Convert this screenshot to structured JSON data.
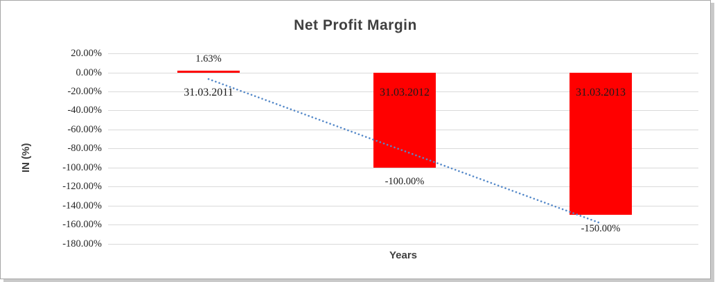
{
  "frame": {
    "background": "#ffffff",
    "border_color": "#a6a6a6",
    "shadow_color": "#c9c9c9"
  },
  "chart_data": {
    "type": "bar",
    "title": "Net Profit Margin",
    "xlabel": "Years",
    "ylabel": "IN (%)",
    "categories": [
      "31.03.2011",
      "31.03.2012",
      "31.03.2013"
    ],
    "series": [
      {
        "name": "Net Profit Margin",
        "values": [
          1.63,
          -100.0,
          -150.0
        ]
      }
    ],
    "data_labels": [
      "1.63%",
      "-100.00%",
      "-150.00%"
    ],
    "y_ticks": [
      {
        "label": "20.00%",
        "value": 20
      },
      {
        "label": "0.00%",
        "value": 0
      },
      {
        "label": "-20.00%",
        "value": -20
      },
      {
        "label": "-40.00%",
        "value": -40
      },
      {
        "label": "-60.00%",
        "value": -60
      },
      {
        "label": "-80.00%",
        "value": -80
      },
      {
        "label": "-100.00%",
        "value": -100
      },
      {
        "label": "-120.00%",
        "value": -120
      },
      {
        "label": "-140.00%",
        "value": -140
      },
      {
        "label": "-160.00%",
        "value": -160
      },
      {
        "label": "-180.00%",
        "value": -180
      }
    ],
    "ylim": [
      -180,
      20
    ],
    "grid": true,
    "legend": "none",
    "colors": {
      "bar": "#ff0000",
      "gridline": "#d9d9d9",
      "tick_text": "#262626",
      "label_text": "#1a1a1a",
      "title_text": "#3f3f3f",
      "trendline": "#5589c9"
    },
    "trendline": {
      "type": "linear",
      "style": "dotted",
      "start_value": -6.98,
      "end_value": -158.61
    }
  }
}
